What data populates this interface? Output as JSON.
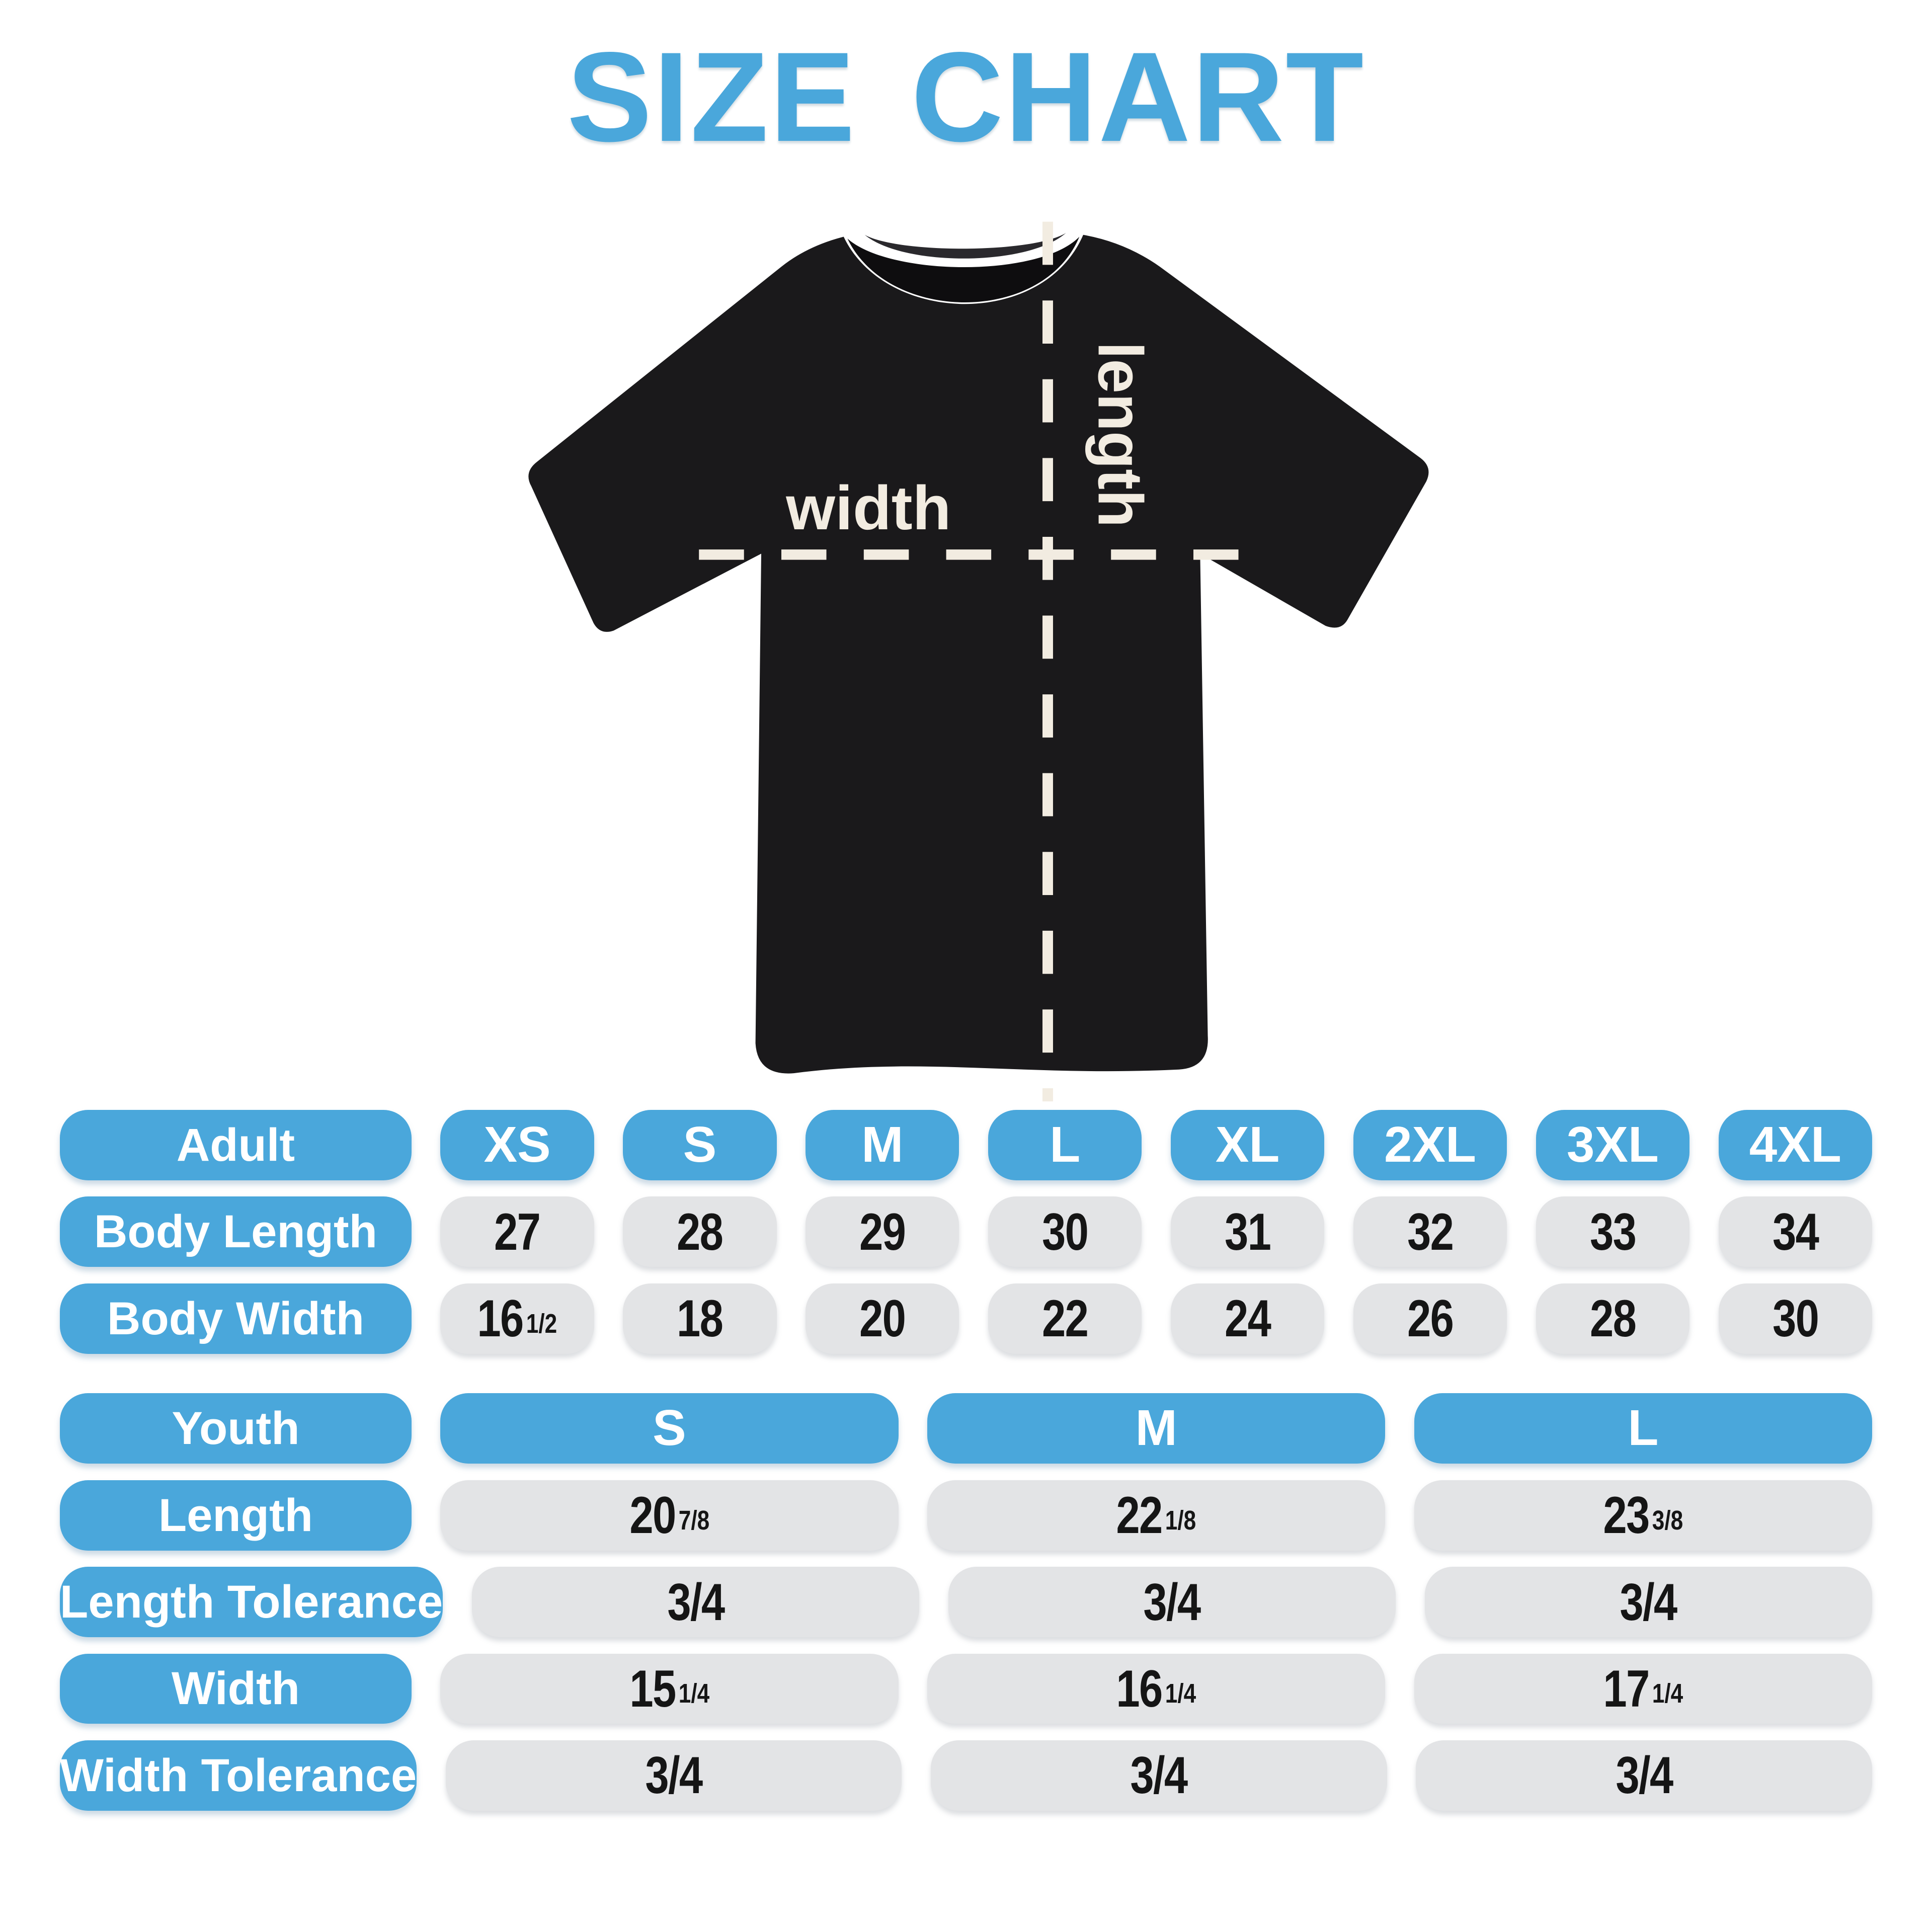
{
  "title": "SIZE CHART",
  "colors": {
    "accent_blue": "#4AA7DB",
    "cell_gray": "#E3E4E6",
    "value_ink": "#151515",
    "pill_text_white": "#FFFFFF",
    "shirt_black": "#1A191B",
    "shirt_inner_shadow": "#0E0D0F",
    "collar_band": "#2A292D",
    "measure_cream": "#F2ECE1",
    "background": "#FFFFFF"
  },
  "diagram": {
    "width_label": "width",
    "length_label": "length"
  },
  "adult_table": {
    "header_label": "Adult",
    "sizes": [
      "XS",
      "S",
      "M",
      "L",
      "XL",
      "2XL",
      "3XL",
      "4XL"
    ],
    "rows": [
      {
        "label": "Body Length",
        "values": [
          "27",
          "28",
          "29",
          "30",
          "31",
          "32",
          "33",
          "34"
        ]
      },
      {
        "label": "Body Width",
        "values": [
          "16 1/2",
          "18",
          "20",
          "22",
          "24",
          "26",
          "28",
          "30"
        ]
      }
    ]
  },
  "youth_table": {
    "header_label": "Youth",
    "sizes": [
      "S",
      "M",
      "L"
    ],
    "rows": [
      {
        "label": "Length",
        "values": [
          "20 7/8",
          "22 1/8",
          "23 3/8"
        ]
      },
      {
        "label": "Length Tolerance",
        "values": [
          "3/4",
          "3/4",
          "3/4"
        ]
      },
      {
        "label": "Width",
        "values": [
          "15 1/4",
          "16 1/4",
          "17 1/4"
        ]
      },
      {
        "label": "Width Tolerance",
        "values": [
          "3/4",
          "3/4",
          "3/4"
        ]
      }
    ]
  }
}
